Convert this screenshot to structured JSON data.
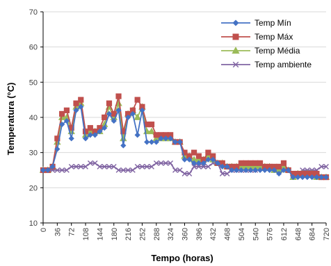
{
  "chart_data": {
    "type": "line",
    "xlabel": "Tempo (horas)",
    "ylabel": "Temperatura (°C)",
    "xlim": [
      0,
      720
    ],
    "ylim": [
      10,
      70
    ],
    "x_ticks": [
      0,
      36,
      72,
      108,
      144,
      180,
      216,
      252,
      288,
      324,
      360,
      396,
      432,
      468,
      504,
      540,
      576,
      612,
      648,
      684,
      720
    ],
    "y_ticks": [
      10,
      20,
      30,
      40,
      50,
      60,
      70
    ],
    "grid": "horizontal",
    "legend_position": "top-right",
    "x": [
      0,
      12,
      24,
      36,
      48,
      60,
      72,
      84,
      96,
      108,
      120,
      132,
      144,
      156,
      168,
      180,
      192,
      204,
      216,
      228,
      240,
      252,
      264,
      276,
      288,
      300,
      312,
      324,
      336,
      348,
      360,
      372,
      384,
      396,
      408,
      420,
      432,
      444,
      456,
      468,
      480,
      492,
      504,
      516,
      528,
      540,
      552,
      564,
      576,
      588,
      600,
      612,
      624,
      636,
      648,
      660,
      672,
      684,
      696,
      708,
      720
    ],
    "series": [
      {
        "name": "Temp Mín",
        "color": "#4472C4",
        "marker": "diamond",
        "values": [
          25,
          25,
          26,
          31,
          38,
          39,
          34,
          42,
          43,
          34,
          35,
          35,
          36,
          37,
          41,
          39,
          42,
          32,
          40,
          41,
          35,
          42,
          33,
          33,
          33,
          34,
          34,
          34,
          33,
          33,
          28,
          28,
          27,
          27,
          27,
          28,
          28,
          27,
          26,
          26,
          25,
          25,
          25,
          25,
          25,
          25,
          25,
          25,
          25,
          25,
          24,
          25,
          25,
          23,
          23,
          23,
          23,
          23,
          23,
          23,
          23
        ]
      },
      {
        "name": "Temp Máx",
        "color": "#C0504D",
        "marker": "square",
        "values": [
          25,
          25,
          26,
          34,
          41,
          42,
          37,
          44,
          45,
          36,
          37,
          36,
          37,
          40,
          44,
          41,
          46,
          36,
          41,
          42,
          45,
          43,
          38,
          38,
          35,
          35,
          35,
          35,
          33,
          33,
          30,
          29,
          30,
          29,
          28,
          30,
          29,
          27,
          27,
          26,
          26,
          26,
          27,
          27,
          27,
          27,
          27,
          26,
          26,
          26,
          26,
          27,
          25,
          24,
          24,
          24,
          24,
          24,
          24,
          23,
          23
        ]
      },
      {
        "name": "Temp Média",
        "color": "#9BBB59",
        "marker": "triangle",
        "values": [
          25,
          25,
          26,
          33,
          40,
          40,
          36,
          43,
          44,
          35,
          36,
          36,
          36,
          38,
          43,
          40,
          44,
          34,
          41,
          42,
          40,
          43,
          36,
          36,
          34,
          34,
          34,
          34,
          33,
          33,
          29,
          29,
          28,
          28,
          28,
          29,
          28,
          27,
          27,
          26,
          26,
          26,
          26,
          26,
          26,
          26,
          26,
          26,
          26,
          25,
          25,
          26,
          25,
          23,
          24,
          24,
          24,
          24,
          23,
          23,
          23
        ]
      },
      {
        "name": "Temp ambiente",
        "color": "#8064A2",
        "marker": "x",
        "values": [
          25,
          25,
          25,
          25,
          25,
          25,
          26,
          26,
          26,
          26,
          27,
          27,
          26,
          26,
          26,
          26,
          25,
          25,
          25,
          25,
          26,
          26,
          26,
          26,
          27,
          27,
          27,
          27,
          25,
          25,
          24,
          24,
          26,
          26,
          26,
          26,
          27,
          27,
          24,
          24,
          25,
          25,
          25,
          25,
          25,
          25,
          26,
          26,
          26,
          26,
          25,
          25,
          25,
          24,
          24,
          25,
          25,
          25,
          25,
          26,
          26
        ]
      }
    ]
  }
}
